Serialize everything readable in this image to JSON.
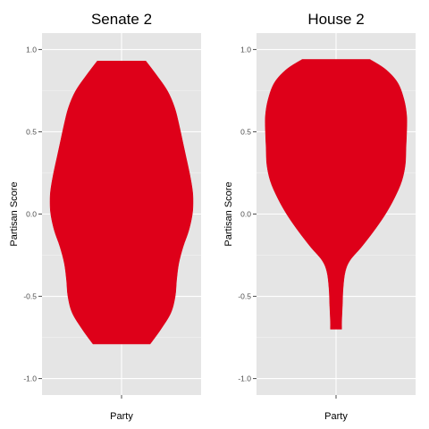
{
  "chart_data": [
    {
      "type": "violin",
      "title": "Senate 2",
      "xlabel": "Party",
      "ylabel": "Partisan Score",
      "categories": [
        ""
      ],
      "ylim": [
        -1.1,
        1.1
      ],
      "yticks": [
        "1.0",
        "0.5",
        "0.0",
        "-0.5",
        "-1.0"
      ],
      "ytick_values": [
        1.0,
        0.5,
        0.0,
        -0.5,
        -1.0
      ],
      "fill_color": "#de0019",
      "panel_bg": "#e5e5e5",
      "grid": true,
      "y_range": [
        -0.79,
        0.93
      ],
      "density_profile": [
        {
          "y": 0.93,
          "w": 0.34
        },
        {
          "y": 0.85,
          "w": 0.48
        },
        {
          "y": 0.75,
          "w": 0.64
        },
        {
          "y": 0.65,
          "w": 0.74
        },
        {
          "y": 0.55,
          "w": 0.8
        },
        {
          "y": 0.45,
          "w": 0.85
        },
        {
          "y": 0.35,
          "w": 0.9
        },
        {
          "y": 0.25,
          "w": 0.95
        },
        {
          "y": 0.15,
          "w": 0.99
        },
        {
          "y": 0.08,
          "w": 1.0
        },
        {
          "y": 0.0,
          "w": 0.99
        },
        {
          "y": -0.1,
          "w": 0.94
        },
        {
          "y": -0.2,
          "w": 0.86
        },
        {
          "y": -0.3,
          "w": 0.8
        },
        {
          "y": -0.4,
          "w": 0.77
        },
        {
          "y": -0.5,
          "w": 0.75
        },
        {
          "y": -0.6,
          "w": 0.69
        },
        {
          "y": -0.7,
          "w": 0.55
        },
        {
          "y": -0.79,
          "w": 0.4
        }
      ]
    },
    {
      "type": "violin",
      "title": "House 2",
      "xlabel": "Party",
      "ylabel": "Partisan Score",
      "categories": [
        ""
      ],
      "ylim": [
        -1.1,
        1.1
      ],
      "yticks": [
        "1.0",
        "0.5",
        "0.0",
        "-0.5",
        "-1.0"
      ],
      "ytick_values": [
        1.0,
        0.5,
        0.0,
        -0.5,
        -1.0
      ],
      "fill_color": "#de0019",
      "panel_bg": "#e5e5e5",
      "grid": true,
      "y_range": [
        -0.7,
        0.94
      ],
      "density_profile": [
        {
          "y": 0.94,
          "w": 0.48
        },
        {
          "y": 0.88,
          "w": 0.7
        },
        {
          "y": 0.8,
          "w": 0.87
        },
        {
          "y": 0.7,
          "w": 0.96
        },
        {
          "y": 0.6,
          "w": 1.0
        },
        {
          "y": 0.5,
          "w": 1.0
        },
        {
          "y": 0.4,
          "w": 0.99
        },
        {
          "y": 0.3,
          "w": 0.98
        },
        {
          "y": 0.2,
          "w": 0.93
        },
        {
          "y": 0.1,
          "w": 0.83
        },
        {
          "y": 0.0,
          "w": 0.7
        },
        {
          "y": -0.1,
          "w": 0.54
        },
        {
          "y": -0.2,
          "w": 0.36
        },
        {
          "y": -0.28,
          "w": 0.2
        },
        {
          "y": -0.35,
          "w": 0.13
        },
        {
          "y": -0.45,
          "w": 0.1
        },
        {
          "y": -0.55,
          "w": 0.09
        },
        {
          "y": -0.65,
          "w": 0.08
        },
        {
          "y": -0.7,
          "w": 0.08
        }
      ]
    }
  ]
}
